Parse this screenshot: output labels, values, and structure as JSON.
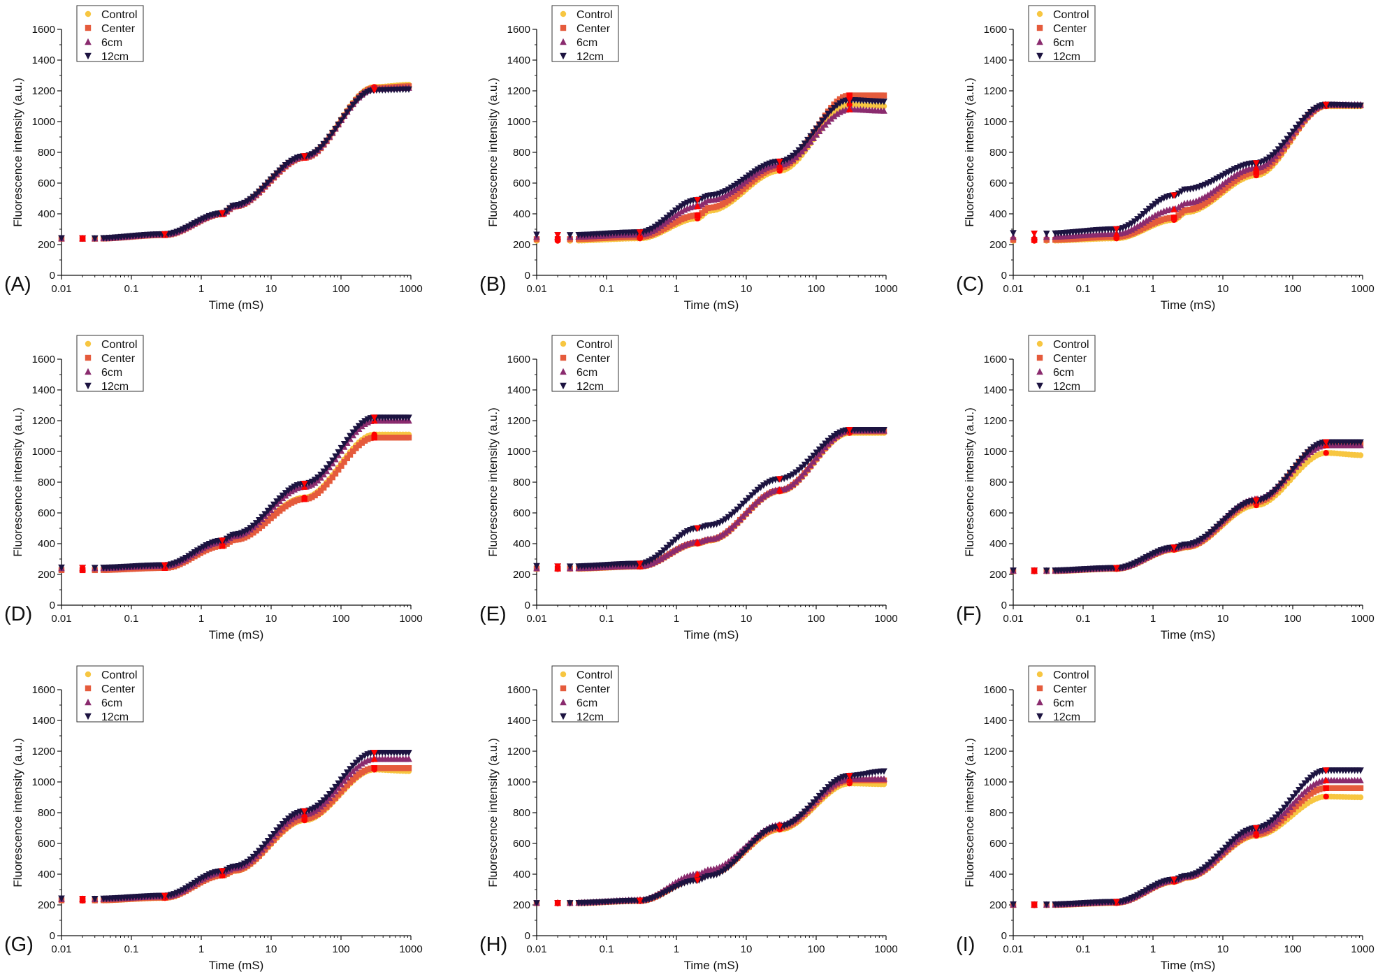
{
  "figure": {
    "chart_data": [
      {
        "type": "scatter",
        "panel": "(A)",
        "xlabel": "Time (mS)",
        "ylabel": "Fluorescence intensity (a.u.)",
        "xscale": "log",
        "xlim": [
          0.01,
          1000
        ],
        "ylim": [
          0,
          1600
        ],
        "xticks": [
          "0.01",
          "0.1",
          "1",
          "10",
          "100",
          "1000"
        ],
        "yticks": [
          "0",
          "200",
          "400",
          "600",
          "800",
          "1000",
          "1200",
          "1400",
          "1600"
        ],
        "legend": [
          "Control",
          "Center",
          "6cm",
          "12cm"
        ],
        "x": [
          0.01,
          0.02,
          0.03,
          0.3,
          2,
          3,
          30,
          300,
          1000
        ],
        "series": [
          {
            "name": "Control",
            "values": [
              240,
              240,
              240,
              265,
              400,
              450,
              770,
              1225,
              1240
            ]
          },
          {
            "name": "Center",
            "values": [
              238,
              238,
              238,
              262,
              398,
              448,
              765,
              1218,
              1230
            ]
          },
          {
            "name": "6cm",
            "values": [
              240,
              240,
              240,
              266,
              402,
              452,
              772,
              1212,
              1220
            ]
          },
          {
            "name": "12cm",
            "values": [
              242,
              241,
              241,
              268,
              404,
              455,
              775,
              1205,
              1210
            ]
          }
        ]
      },
      {
        "type": "scatter",
        "panel": "(B)",
        "xlabel": "Time (mS)",
        "ylabel": "Fluorescence intensity (a.u.)",
        "xscale": "log",
        "xlim": [
          0.01,
          1000
        ],
        "ylim": [
          0,
          1600
        ],
        "xticks": [
          "0.01",
          "0.1",
          "1",
          "10",
          "100",
          "1000"
        ],
        "yticks": [
          "0",
          "200",
          "400",
          "600",
          "800",
          "1000",
          "1200",
          "1400",
          "1600"
        ],
        "legend": [
          "Control",
          "Center",
          "6cm",
          "12cm"
        ],
        "x": [
          0.01,
          0.02,
          0.03,
          0.3,
          2,
          3,
          30,
          300,
          1000
        ],
        "series": [
          {
            "name": "Control",
            "values": [
              225,
              225,
              225,
              240,
              370,
              420,
              680,
              1110,
              1100
            ]
          },
          {
            "name": "Center",
            "values": [
              235,
              235,
              235,
              250,
              390,
              440,
              700,
              1170,
              1170
            ]
          },
          {
            "name": "6cm",
            "values": [
              250,
              250,
              250,
              265,
              450,
              490,
              720,
              1080,
              1070
            ]
          },
          {
            "name": "12cm",
            "values": [
              265,
              262,
              262,
              280,
              490,
              520,
              740,
              1140,
              1130
            ]
          }
        ]
      },
      {
        "type": "scatter",
        "panel": "(C)",
        "xlabel": "Time (mS)",
        "ylabel": "Fluorescence intensity (a.u.)",
        "xscale": "log",
        "xlim": [
          0.01,
          1000
        ],
        "ylim": [
          0,
          1600
        ],
        "xticks": [
          "0.01",
          "0.1",
          "1",
          "10",
          "100",
          "1000"
        ],
        "yticks": [
          "0",
          "200",
          "400",
          "600",
          "800",
          "1000",
          "1200",
          "1400",
          "1600"
        ],
        "legend": [
          "Control",
          "Center",
          "6cm",
          "12cm"
        ],
        "x": [
          0.01,
          0.02,
          0.03,
          0.3,
          2,
          3,
          30,
          300,
          1000
        ],
        "series": [
          {
            "name": "Control",
            "values": [
              225,
              225,
              225,
              240,
              360,
              410,
              650,
              1100,
              1100
            ]
          },
          {
            "name": "Center",
            "values": [
              230,
              230,
              230,
              250,
              375,
              425,
              670,
              1105,
              1105
            ]
          },
          {
            "name": "6cm",
            "values": [
              250,
              250,
              250,
              270,
              430,
              470,
              700,
              1110,
              1110
            ]
          },
          {
            "name": "12cm",
            "values": [
              275,
              272,
              272,
              300,
              520,
              560,
              730,
              1110,
              1105
            ]
          }
        ]
      },
      {
        "type": "scatter",
        "panel": "(D)",
        "xlabel": "Time (mS)",
        "ylabel": "Fluorescence intensity (a.u.)",
        "xscale": "log",
        "xlim": [
          0.01,
          1000
        ],
        "ylim": [
          0,
          1600
        ],
        "xticks": [
          "0.01",
          "0.1",
          "1",
          "10",
          "100",
          "1000"
        ],
        "yticks": [
          "0",
          "200",
          "400",
          "600",
          "800",
          "1000",
          "1200",
          "1400",
          "1600"
        ],
        "legend": [
          "Control",
          "Center",
          "6cm",
          "12cm"
        ],
        "x": [
          0.01,
          0.02,
          0.03,
          0.3,
          2,
          3,
          30,
          300,
          1000
        ],
        "series": [
          {
            "name": "Control",
            "values": [
              230,
              230,
              230,
              245,
              390,
              430,
              700,
              1110,
              1110
            ]
          },
          {
            "name": "Center",
            "values": [
              228,
              228,
              228,
              242,
              385,
              425,
              690,
              1090,
              1090
            ]
          },
          {
            "name": "6cm",
            "values": [
              240,
              240,
              240,
              255,
              410,
              450,
              770,
              1200,
              1200
            ]
          },
          {
            "name": "12cm",
            "values": [
              245,
              243,
              243,
              260,
              420,
              460,
              790,
              1220,
              1220
            ]
          }
        ]
      },
      {
        "type": "scatter",
        "panel": "(E)",
        "xlabel": "Time (mS)",
        "ylabel": "Fluorescence intensity (a.u.)",
        "xscale": "log",
        "xlim": [
          0.01,
          1000
        ],
        "ylim": [
          0,
          1600
        ],
        "xticks": [
          "0.01",
          "0.1",
          "1",
          "10",
          "100",
          "1000"
        ],
        "yticks": [
          "0",
          "200",
          "400",
          "600",
          "800",
          "1000",
          "1200",
          "1400",
          "1600"
        ],
        "legend": [
          "Control",
          "Center",
          "6cm",
          "12cm"
        ],
        "x": [
          0.01,
          0.02,
          0.03,
          0.3,
          2,
          3,
          30,
          300,
          1000
        ],
        "series": [
          {
            "name": "Control",
            "values": [
              235,
              235,
              235,
              250,
              400,
              420,
              740,
              1120,
              1120
            ]
          },
          {
            "name": "Center",
            "values": [
              238,
              238,
              238,
              252,
              405,
              425,
              745,
              1130,
              1130
            ]
          },
          {
            "name": "6cm",
            "values": [
              240,
              240,
              240,
              255,
              410,
              430,
              750,
              1135,
              1135
            ]
          },
          {
            "name": "12cm",
            "values": [
              255,
              252,
              252,
              270,
              500,
              520,
              820,
              1140,
              1140
            ]
          }
        ]
      },
      {
        "type": "scatter",
        "panel": "(F)",
        "xlabel": "Time (mS)",
        "ylabel": "Fluorescence intensity (a.u.)",
        "xscale": "log",
        "xlim": [
          0.01,
          1000
        ],
        "ylim": [
          0,
          1600
        ],
        "xticks": [
          "0.01",
          "0.1",
          "1",
          "10",
          "100",
          "1000"
        ],
        "yticks": [
          "0",
          "200",
          "400",
          "600",
          "800",
          "1000",
          "1200",
          "1400",
          "1600"
        ],
        "legend": [
          "Control",
          "Center",
          "6cm",
          "12cm"
        ],
        "x": [
          0.01,
          0.02,
          0.03,
          0.3,
          2,
          3,
          30,
          300,
          1000
        ],
        "series": [
          {
            "name": "Control",
            "values": [
              220,
              220,
              220,
              235,
              360,
              375,
              650,
              990,
              975
            ]
          },
          {
            "name": "Center",
            "values": [
              222,
              222,
              222,
              238,
              365,
              380,
              670,
              1050,
              1050
            ]
          },
          {
            "name": "6cm",
            "values": [
              224,
              224,
              224,
              240,
              370,
              390,
              690,
              1040,
              1040
            ]
          },
          {
            "name": "12cm",
            "values": [
              226,
              225,
              225,
              242,
              375,
              395,
              680,
              1060,
              1060
            ]
          }
        ]
      },
      {
        "type": "scatter",
        "panel": "(G)",
        "xlabel": "Time (mS)",
        "ylabel": "Fluorescence intensity (a.u.)",
        "xscale": "log",
        "xlim": [
          0.01,
          1000
        ],
        "ylim": [
          0,
          1600
        ],
        "xticks": [
          "0.01",
          "0.1",
          "1",
          "10",
          "100",
          "1000"
        ],
        "yticks": [
          "0",
          "200",
          "400",
          "600",
          "800",
          "1000",
          "1200",
          "1400",
          "1600"
        ],
        "legend": [
          "Control",
          "Center",
          "6cm",
          "12cm"
        ],
        "x": [
          0.01,
          0.02,
          0.03,
          0.3,
          2,
          3,
          30,
          300,
          1000
        ],
        "series": [
          {
            "name": "Control",
            "values": [
              228,
              228,
              228,
              245,
              390,
              420,
              750,
              1080,
              1070
            ]
          },
          {
            "name": "Center",
            "values": [
              230,
              230,
              230,
              248,
              392,
              425,
              760,
              1090,
              1090
            ]
          },
          {
            "name": "6cm",
            "values": [
              238,
              238,
              238,
              255,
              410,
              440,
              790,
              1150,
              1150
            ]
          },
          {
            "name": "12cm",
            "values": [
              242,
              240,
              240,
              260,
              420,
              450,
              810,
              1190,
              1190
            ]
          }
        ]
      },
      {
        "type": "scatter",
        "panel": "(H)",
        "xlabel": "Time (mS)",
        "ylabel": "Fluorescence intensity (a.u.)",
        "xscale": "log",
        "xlim": [
          0.01,
          1000
        ],
        "ylim": [
          0,
          1600
        ],
        "xticks": [
          "0.01",
          "0.1",
          "1",
          "10",
          "100",
          "1000"
        ],
        "yticks": [
          "0",
          "200",
          "400",
          "600",
          "800",
          "1000",
          "1200",
          "1400",
          "1600"
        ],
        "legend": [
          "Control",
          "Center",
          "6cm",
          "12cm"
        ],
        "x": [
          0.01,
          0.02,
          0.03,
          0.3,
          2,
          3,
          30,
          300,
          1000
        ],
        "series": [
          {
            "name": "Control",
            "values": [
              210,
              210,
              210,
              225,
              370,
              400,
              690,
              990,
              985
            ]
          },
          {
            "name": "Center",
            "values": [
              212,
              212,
              212,
              227,
              375,
              405,
              700,
              1010,
              1010
            ]
          },
          {
            "name": "6cm",
            "values": [
              214,
              214,
              214,
              232,
              400,
              430,
              720,
              1020,
              1020
            ]
          },
          {
            "name": "12cm",
            "values": [
              212,
              212,
              212,
              228,
              360,
              390,
              710,
              1040,
              1070
            ]
          }
        ]
      },
      {
        "type": "scatter",
        "panel": "(I)",
        "xlabel": "Time (mS)",
        "ylabel": "Fluorescence intensity (a.u.)",
        "xscale": "log",
        "xlim": [
          0.01,
          1000
        ],
        "ylim": [
          0,
          1600
        ],
        "xticks": [
          "0.01",
          "0.1",
          "1",
          "10",
          "100",
          "1000"
        ],
        "yticks": [
          "0",
          "200",
          "400",
          "600",
          "800",
          "1000",
          "1200",
          "1400",
          "1600"
        ],
        "legend": [
          "Control",
          "Center",
          "6cm",
          "12cm"
        ],
        "x": [
          0.01,
          0.02,
          0.03,
          0.3,
          2,
          3,
          30,
          300,
          1000
        ],
        "series": [
          {
            "name": "Control",
            "values": [
              198,
              198,
              198,
              212,
              350,
              375,
              650,
              905,
              900
            ]
          },
          {
            "name": "Center",
            "values": [
              200,
              200,
              200,
              215,
              355,
              380,
              660,
              960,
              960
            ]
          },
          {
            "name": "6cm",
            "values": [
              202,
              202,
              202,
              218,
              360,
              385,
              680,
              1010,
              1010
            ]
          },
          {
            "name": "12cm",
            "values": [
              204,
              203,
              203,
              220,
              365,
              390,
              700,
              1075,
              1075
            ]
          }
        ]
      }
    ],
    "colors": {
      "Control": "#f7c641",
      "Center": "#e55b3c",
      "6cm": "#8a2b6e",
      "12cm": "#1c1340",
      "highlight": "#ff0000",
      "axis": "#111111"
    },
    "markers": {
      "Control": "circle",
      "Center": "square",
      "6cm": "triangle-up",
      "12cm": "triangle-down"
    }
  }
}
